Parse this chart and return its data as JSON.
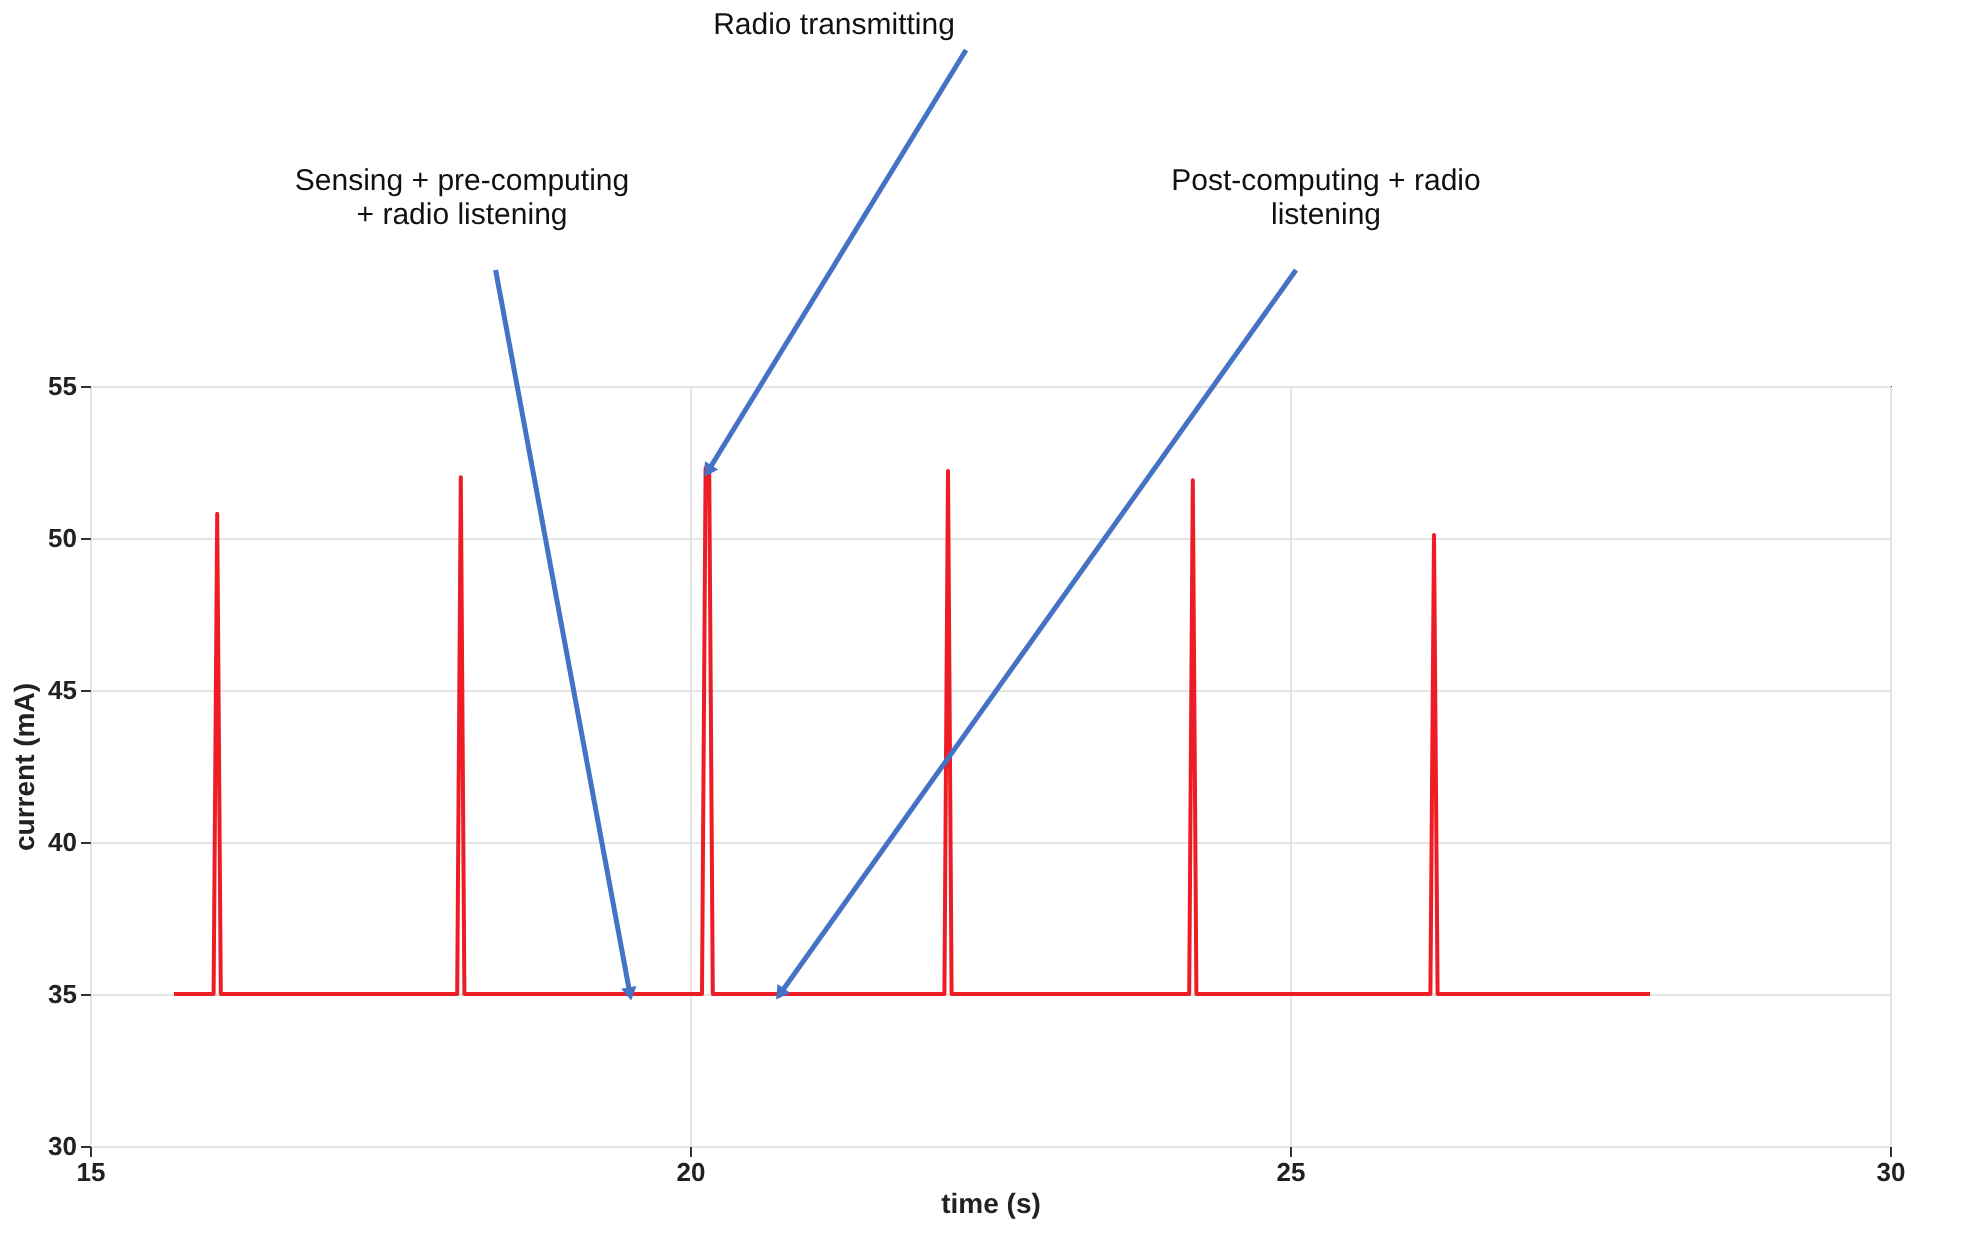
{
  "chart_data": {
    "type": "line",
    "xlabel": "time (s)",
    "ylabel": "current (mA)",
    "xlim": [
      15,
      30
    ],
    "xticks": [
      15,
      20,
      25,
      30
    ],
    "ylim": [
      30,
      55
    ],
    "yticks": [
      30,
      35,
      40,
      45,
      50,
      55
    ],
    "grid": true,
    "line_style": "solid",
    "marker": "none",
    "series": [
      {
        "color": "#ee1c25",
        "x": [
          15.7,
          16.03,
          16.06,
          16.09,
          18.06,
          18.09,
          18.12,
          20.1,
          20.13,
          20.16,
          20.19,
          22.12,
          22.15,
          22.18,
          24.16,
          24.19,
          24.22,
          26.17,
          26.2,
          26.23,
          28.0
        ],
        "values": [
          35,
          35,
          50.8,
          35,
          35,
          52.0,
          35,
          35,
          52.3,
          52.3,
          35,
          35,
          52.2,
          35,
          35,
          51.9,
          35,
          35,
          50.1,
          35,
          35
        ]
      }
    ],
    "annotations": [
      {
        "text": "Sensing + pre-computing\n+ radio listening",
        "x": 19.5,
        "y": 35
      },
      {
        "text": "Radio transmitting",
        "x": 20.15,
        "y": 52.2
      },
      {
        "text": "Post-computing + radio\nlistening",
        "x": 20.75,
        "y": 35
      }
    ]
  }
}
